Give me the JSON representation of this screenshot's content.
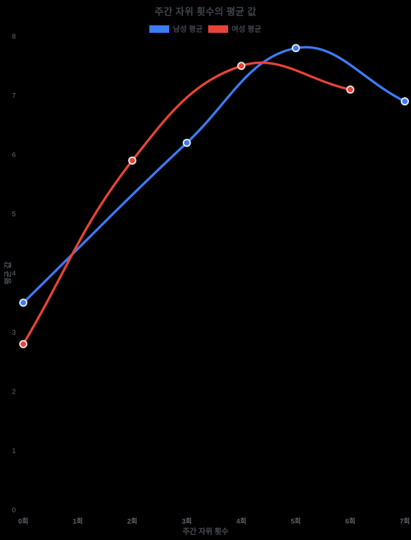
{
  "title": "주간 자위 횟수의 평균 값",
  "legend": {
    "position": "top",
    "items": [
      {
        "label": "남성 평균",
        "color": "#3C7CF3"
      },
      {
        "label": "여성 평균",
        "color": "#E94338"
      }
    ]
  },
  "chart_data": {
    "type": "line",
    "title": "주간 자위 횟수의 평균 값",
    "xlabel": "주간 자위 횟수",
    "ylabel": "평균 값",
    "categories": [
      "0회",
      "1회",
      "2회",
      "3회",
      "4회",
      "5회",
      "6회",
      "7회"
    ],
    "y_ticks": [
      0,
      1,
      2,
      3,
      4,
      5,
      6,
      7,
      8
    ],
    "ylim": [
      0,
      8
    ],
    "grid": false,
    "background": "#000000",
    "smooth": true,
    "point_border_color": "#FFFFFF",
    "series": [
      {
        "name": "남성 평균",
        "color": "#3C7CF3",
        "points": [
          [
            0,
            3.5
          ],
          [
            3,
            6.2
          ],
          [
            5,
            7.8
          ],
          [
            7,
            6.9
          ]
        ]
      },
      {
        "name": "여성 평균",
        "color": "#E94338",
        "points": [
          [
            0,
            2.8
          ],
          [
            2,
            5.9
          ],
          [
            4,
            7.5
          ],
          [
            6,
            7.1
          ]
        ]
      }
    ]
  }
}
